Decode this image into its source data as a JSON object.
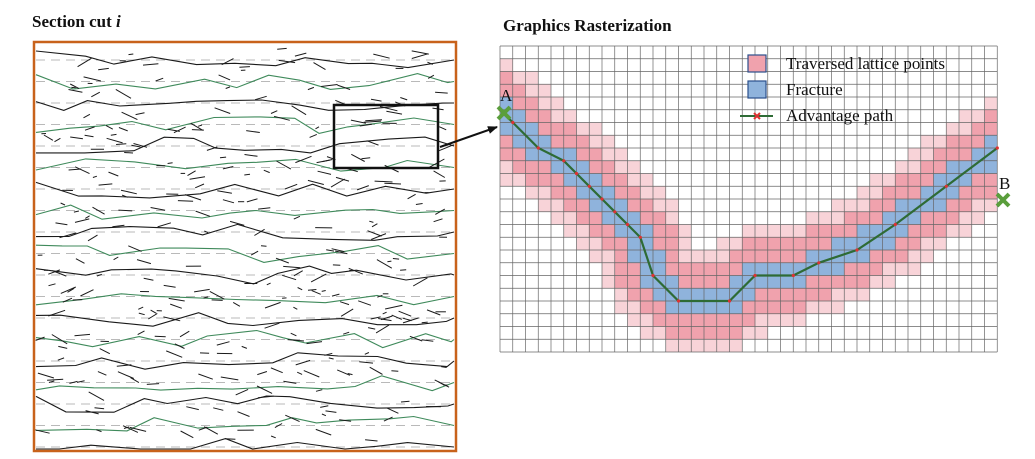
{
  "left_panel": {
    "title_prefix": "Section cut ",
    "title_var": "i",
    "border_color": "#c8621b",
    "fracture_color": "#1a1a1a",
    "trace_color": "#3f8a5b",
    "dash_color": "#b9b9b9"
  },
  "right_panel": {
    "title": "Graphics Rasterization",
    "grid_color": "#666666",
    "traversed_color": "#f0a2ad",
    "traversed_light_color": "#f8d3d8",
    "fracture_fill_color": "#8fb3dc",
    "path_color": "#2e6b35",
    "node_color": "#d33",
    "endpoint_color": "#5a9e3c"
  },
  "legend": {
    "traversed_label": "Traversed lattice points",
    "fracture_label": "Fracture",
    "path_label": "Advantage path"
  },
  "points": {
    "start_label": "A",
    "end_label": "B"
  }
}
